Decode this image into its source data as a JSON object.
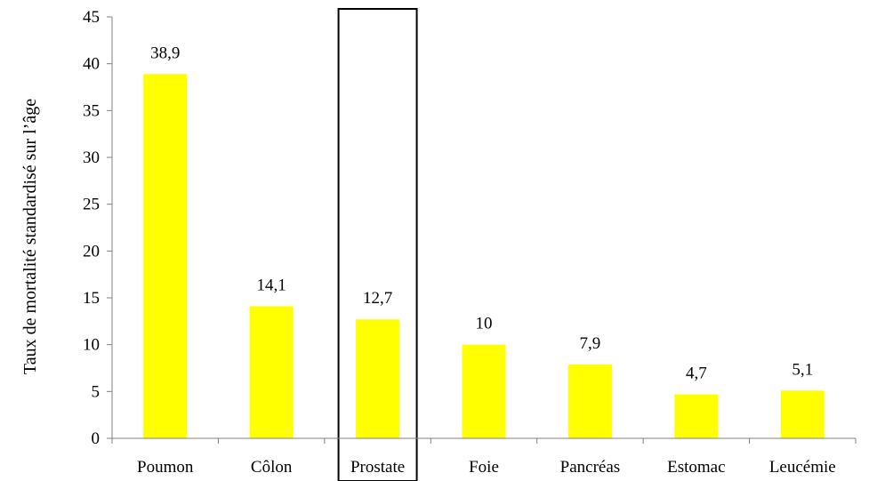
{
  "chart_data": {
    "type": "bar",
    "ylabel": "Taux de mortalité  standardisé sur l’âge",
    "ylim": [
      0,
      45
    ],
    "yticks": [
      0,
      5,
      10,
      15,
      20,
      25,
      30,
      35,
      40,
      45
    ],
    "ytick_labels": [
      "0",
      "5",
      "10",
      "15",
      "20",
      "25",
      "30",
      "35",
      "40",
      "45"
    ],
    "categories": [
      "Poumon",
      "Côlon",
      "Prostate",
      "Foie",
      "Pancréas",
      "Estomac",
      "Leucémie"
    ],
    "values": [
      38.9,
      14.1,
      12.7,
      10,
      7.9,
      4.7,
      5.1
    ],
    "data_labels": [
      "38,9",
      "14,1",
      "12,7",
      "10",
      "7,9",
      "4,7",
      "5,1"
    ],
    "highlighted_category": "Prostate",
    "bar_color": "#FFFF00",
    "highlight_box_color": "#000000",
    "axis_color": "#808080",
    "grid": false,
    "legend": "none"
  }
}
